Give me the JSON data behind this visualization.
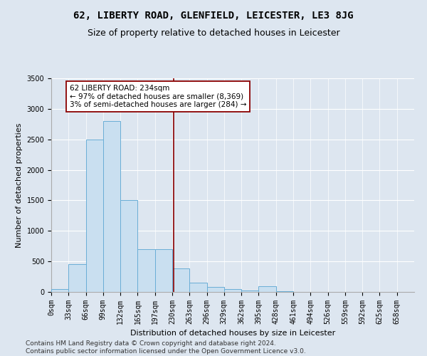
{
  "title": "62, LIBERTY ROAD, GLENFIELD, LEICESTER, LE3 8JG",
  "subtitle": "Size of property relative to detached houses in Leicester",
  "xlabel": "Distribution of detached houses by size in Leicester",
  "ylabel": "Number of detached properties",
  "bin_labels": [
    "0sqm",
    "33sqm",
    "66sqm",
    "99sqm",
    "132sqm",
    "165sqm",
    "197sqm",
    "230sqm",
    "263sqm",
    "296sqm",
    "329sqm",
    "362sqm",
    "395sqm",
    "428sqm",
    "461sqm",
    "494sqm",
    "526sqm",
    "559sqm",
    "592sqm",
    "625sqm",
    "658sqm"
  ],
  "bar_heights": [
    50,
    450,
    2500,
    2800,
    1500,
    700,
    700,
    380,
    150,
    80,
    50,
    25,
    90,
    10,
    5,
    5,
    5,
    5,
    5,
    5,
    5
  ],
  "bar_color": "#c9dff0",
  "bar_edge_color": "#6aaed6",
  "vline_x": 234,
  "vline_color": "#8b0000",
  "annotation_text": "62 LIBERTY ROAD: 234sqm\n← 97% of detached houses are smaller (8,369)\n3% of semi-detached houses are larger (284) →",
  "annotation_box_color": "#ffffff",
  "annotation_box_edge": "#8b0000",
  "ylim": [
    0,
    3500
  ],
  "xmin": 0,
  "xmax": 693,
  "bin_width": 33,
  "yticks": [
    0,
    500,
    1000,
    1500,
    2000,
    2500,
    3000,
    3500
  ],
  "footer": "Contains HM Land Registry data © Crown copyright and database right 2024.\nContains public sector information licensed under the Open Government Licence v3.0.",
  "background_color": "#dde6f0",
  "plot_bg_color": "#dde6f0",
  "title_fontsize": 10,
  "subtitle_fontsize": 9,
  "axis_label_fontsize": 8,
  "tick_fontsize": 7,
  "footer_fontsize": 6.5,
  "annotation_fontsize": 7.5
}
